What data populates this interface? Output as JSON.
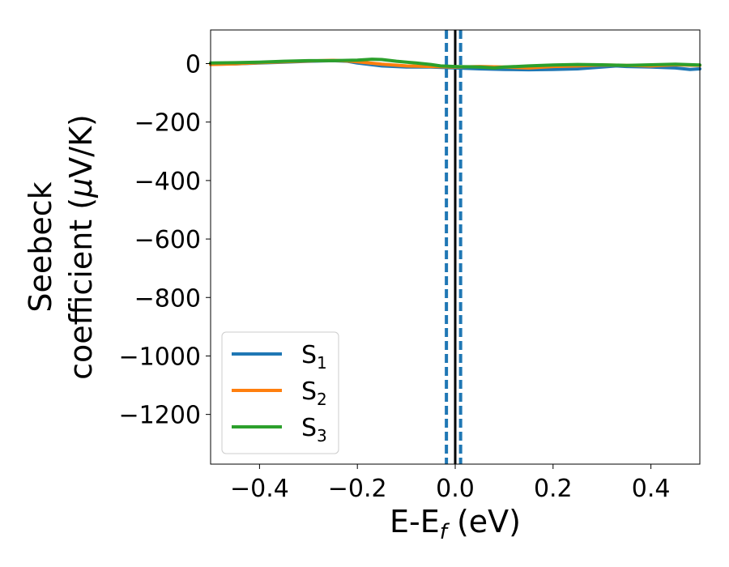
{
  "chart_data": {
    "type": "line",
    "xlabel_main": "E-E",
    "xlabel_sub": "f",
    "xlabel_unit": " (eV)",
    "ylabel_line1": "Seebeck",
    "ylabel_line2_prefix": "coefficient  (",
    "ylabel_mu": "μ",
    "ylabel_line2_suffix": "V/K)",
    "xlim": [
      -0.5,
      0.5
    ],
    "ylim": [
      -1370,
      115
    ],
    "x_ticks": [
      -0.4,
      -0.2,
      0.0,
      0.2,
      0.4
    ],
    "x_tick_labels": [
      "−0.4",
      "−0.2",
      "0.0",
      "0.2",
      "0.4"
    ],
    "y_ticks": [
      0,
      -200,
      -400,
      -600,
      -800,
      -1000,
      -1200
    ],
    "y_tick_labels": [
      "0",
      "−200",
      "−400",
      "−600",
      "−800",
      "−1000",
      "−1200"
    ],
    "grid": false,
    "legend_position": "lower-left",
    "vertical_lines": [
      {
        "x": 0.0,
        "color": "#000000",
        "style": "solid"
      },
      {
        "x": -0.018,
        "color": "#1f77b4",
        "style": "dashed"
      },
      {
        "x": 0.011,
        "color": "#1f77b4",
        "style": "dashed"
      }
    ],
    "series": [
      {
        "name_base": "S",
        "name_sub": "1",
        "color": "#1f77b4",
        "x": [
          -0.5,
          -0.45,
          -0.4,
          -0.35,
          -0.3,
          -0.25,
          -0.22,
          -0.2,
          -0.15,
          -0.1,
          -0.05,
          0.0,
          0.05,
          0.1,
          0.15,
          0.2,
          0.25,
          0.3,
          0.33,
          0.35,
          0.4,
          0.45,
          0.48,
          0.5
        ],
        "y": [
          -2,
          -1,
          2,
          5,
          8,
          10,
          8,
          2,
          -8,
          -12,
          -12,
          -15,
          -18,
          -20,
          -21,
          -20,
          -18,
          -12,
          -8,
          -10,
          -12,
          -15,
          -20,
          -18
        ]
      },
      {
        "name_base": "S",
        "name_sub": "2",
        "color": "#ff7f0e",
        "x": [
          -0.5,
          -0.45,
          -0.4,
          -0.35,
          -0.3,
          -0.25,
          -0.22,
          -0.2,
          -0.15,
          -0.1,
          -0.05,
          0.0,
          0.05,
          0.1,
          0.15,
          0.2,
          0.25,
          0.3,
          0.35,
          0.4,
          0.45,
          0.5
        ],
        "y": [
          -3,
          -1,
          3,
          6,
          9,
          11,
          9,
          6,
          -2,
          -8,
          -10,
          -12,
          -10,
          -12,
          -15,
          -10,
          -8,
          -5,
          -6,
          -8,
          -4,
          -6
        ]
      },
      {
        "name_base": "S",
        "name_sub": "3",
        "color": "#2ca02c",
        "x": [
          -0.5,
          -0.45,
          -0.4,
          -0.35,
          -0.3,
          -0.25,
          -0.2,
          -0.17,
          -0.15,
          -0.12,
          -0.08,
          -0.05,
          -0.03,
          0.0,
          0.05,
          0.08,
          0.1,
          0.15,
          0.2,
          0.25,
          0.3,
          0.35,
          0.4,
          0.45,
          0.5
        ],
        "y": [
          2,
          3,
          5,
          8,
          10,
          10,
          12,
          15,
          14,
          8,
          2,
          -3,
          -8,
          -10,
          -12,
          -15,
          -12,
          -8,
          -5,
          -3,
          -4,
          -6,
          -4,
          -2,
          -5
        ]
      }
    ]
  }
}
